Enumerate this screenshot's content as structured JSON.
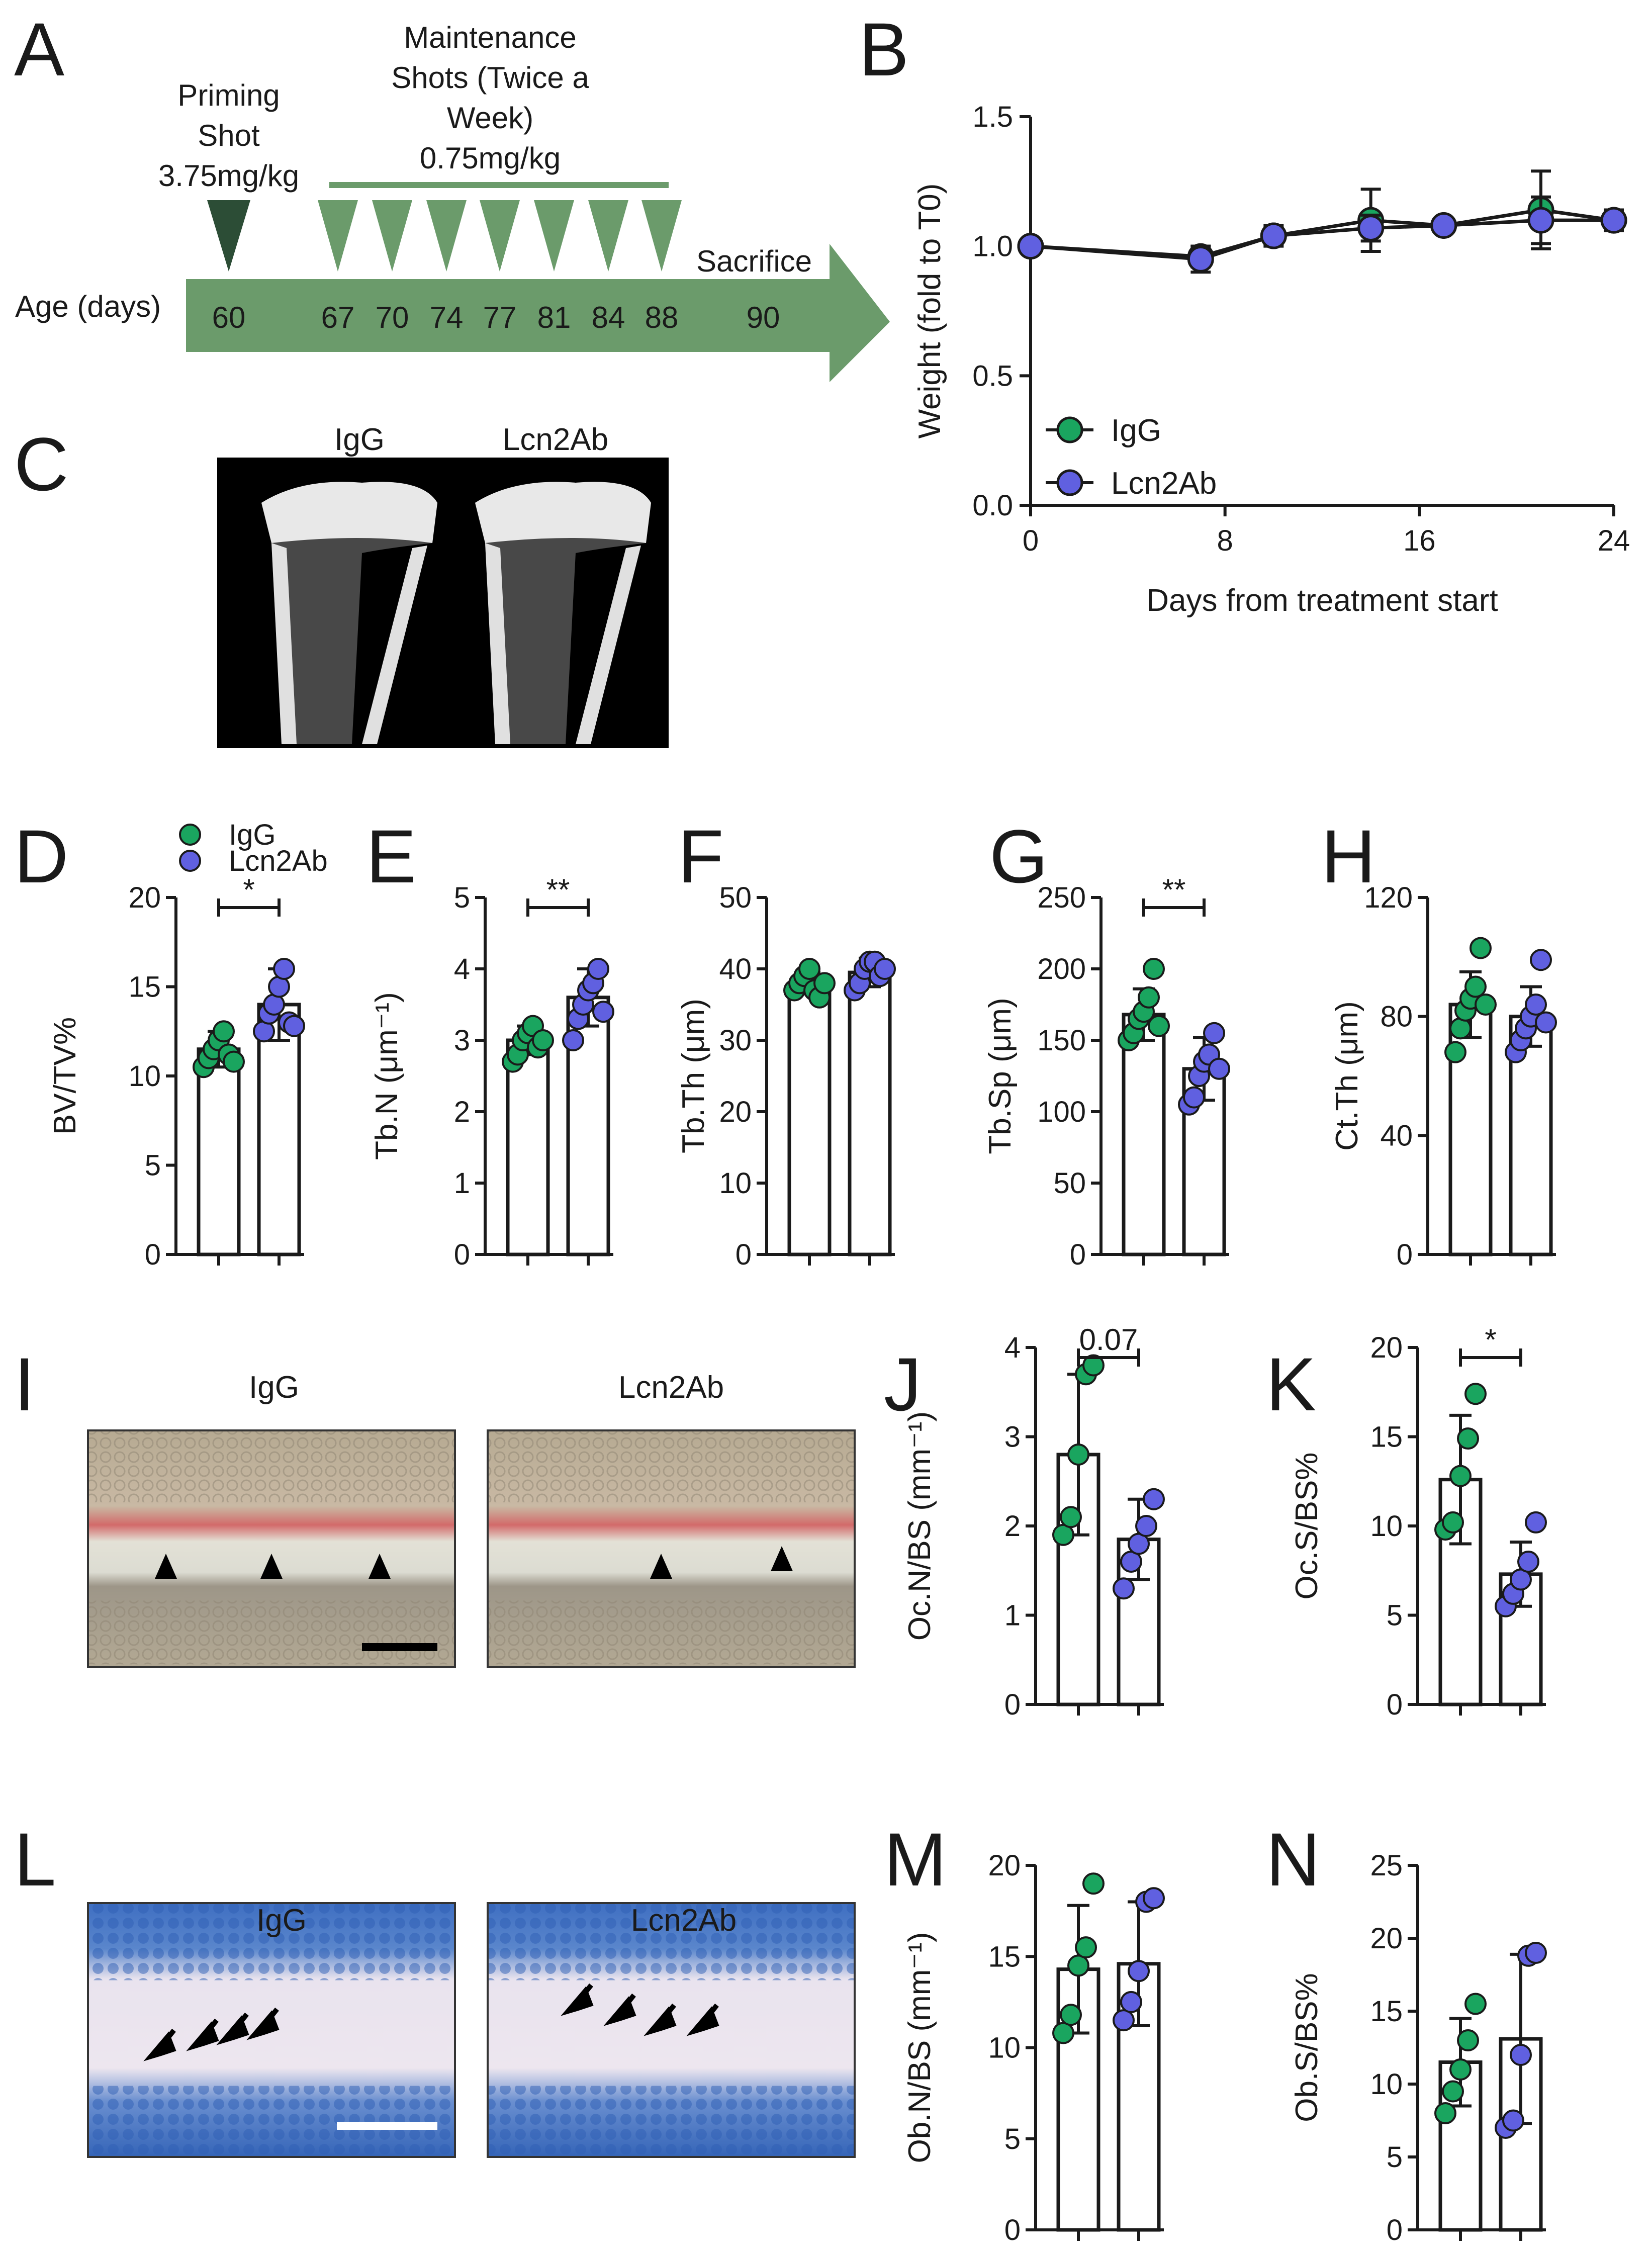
{
  "colors": {
    "igg": "#1aa55f",
    "lcn2ab": "#6060e0",
    "arrow": "#6b9b6b",
    "dark_tri": "#2c4d36",
    "tri": "#6b9b6b",
    "axis": "#1a1a1a"
  },
  "panel_labels": [
    "A",
    "B",
    "C",
    "D",
    "E",
    "F",
    "G",
    "H",
    "I",
    "J",
    "K",
    "L",
    "M",
    "N"
  ],
  "panel_a": {
    "priming_label": [
      "Priming",
      "Shot",
      "3.75mg/kg"
    ],
    "maintenance_label": [
      "Maintenance",
      "Shots (Twice a",
      "Week)",
      "0.75mg/kg"
    ],
    "sacrifice_label": "Sacrifice",
    "age_label": "Age (days)",
    "priming_day": "60",
    "maintenance_days": [
      "67",
      "70",
      "74",
      "77",
      "81",
      "84",
      "88"
    ],
    "sacrifice_day": "90"
  },
  "panel_c": {
    "labels": [
      "IgG",
      "Lcn2Ab"
    ]
  },
  "panel_i": {
    "labels": [
      "IgG",
      "Lcn2Ab"
    ]
  },
  "panel_l": {
    "labels": [
      "IgG",
      "Lcn2Ab"
    ]
  },
  "legend": {
    "igg": "IgG",
    "lcn2ab": "Lcn2Ab"
  },
  "chart_data": [
    {
      "id": "B",
      "type": "line",
      "xlabel": "Days from treatment start",
      "ylabel": "Weight (fold to T0)",
      "xlim": [
        0,
        24
      ],
      "ylim": [
        0,
        1.5
      ],
      "xticks": [
        "0",
        "8",
        "16",
        "24"
      ],
      "yticks": [
        "0.0",
        "0.5",
        "1.0",
        "1.5"
      ],
      "legend": "bottom-left",
      "series": [
        {
          "name": "IgG",
          "x": [
            0,
            7,
            10,
            14,
            17,
            21,
            24
          ],
          "y": [
            1.0,
            0.96,
            1.04,
            1.1,
            1.08,
            1.14,
            1.1
          ],
          "err": [
            0,
            0.04,
            0.04,
            0.12,
            0.02,
            0.15,
            0.03
          ]
        },
        {
          "name": "Lcn2Ab",
          "x": [
            0,
            7,
            10,
            14,
            17,
            21,
            24
          ],
          "y": [
            1.0,
            0.95,
            1.04,
            1.07,
            1.08,
            1.1,
            1.1
          ],
          "err": [
            0,
            0.05,
            0.03,
            0.05,
            0.02,
            0.09,
            0.04
          ]
        }
      ]
    },
    {
      "id": "D",
      "type": "bar",
      "ylabel": "BV/TV%",
      "ylim": [
        0,
        20
      ],
      "yticks": [
        "0",
        "5",
        "10",
        "15",
        "20"
      ],
      "significance": "*",
      "groups": [
        {
          "name": "IgG",
          "mean": 11.5,
          "sd": 1.0,
          "points": [
            10.5,
            11.0,
            11.5,
            12.0,
            12.5,
            11.2,
            10.8
          ]
        },
        {
          "name": "Lcn2Ab",
          "mean": 14.0,
          "sd": 2.0,
          "points": [
            12.5,
            13.5,
            14.0,
            15.0,
            16.0,
            13.0,
            12.8
          ]
        }
      ]
    },
    {
      "id": "E",
      "type": "bar",
      "ylabel": "Tb.N (μm⁻¹)",
      "ylim": [
        0,
        5
      ],
      "yticks": [
        "0",
        "1",
        "2",
        "3",
        "4",
        "5"
      ],
      "significance": "**",
      "groups": [
        {
          "name": "IgG",
          "mean": 3.0,
          "sd": 0.2,
          "points": [
            2.7,
            2.8,
            3.0,
            3.1,
            3.2,
            2.9,
            3.0
          ]
        },
        {
          "name": "Lcn2Ab",
          "mean": 3.6,
          "sd": 0.4,
          "points": [
            3.0,
            3.3,
            3.5,
            3.7,
            3.8,
            4.0,
            3.4
          ]
        }
      ]
    },
    {
      "id": "F",
      "type": "bar",
      "ylabel": "Tb.Th (μm)",
      "ylim": [
        0,
        50
      ],
      "yticks": [
        "0",
        "10",
        "20",
        "30",
        "40",
        "50"
      ],
      "groups": [
        {
          "name": "IgG",
          "mean": 38,
          "sd": 1.5,
          "points": [
            37,
            38,
            39,
            40,
            37,
            36,
            38
          ]
        },
        {
          "name": "Lcn2Ab",
          "mean": 39.5,
          "sd": 2.0,
          "points": [
            37,
            38,
            40,
            41,
            41,
            39,
            40
          ]
        }
      ]
    },
    {
      "id": "G",
      "type": "bar",
      "ylabel": "Tb.Sp (μm)",
      "ylim": [
        0,
        250
      ],
      "yticks": [
        "0",
        "50",
        "100",
        "150",
        "200",
        "250"
      ],
      "significance": "**",
      "groups": [
        {
          "name": "IgG",
          "mean": 168,
          "sd": 18,
          "points": [
            150,
            155,
            165,
            170,
            180,
            200,
            160
          ]
        },
        {
          "name": "Lcn2Ab",
          "mean": 130,
          "sd": 22,
          "points": [
            105,
            110,
            125,
            135,
            140,
            155,
            130
          ]
        }
      ]
    },
    {
      "id": "H",
      "type": "bar",
      "ylabel": "Ct.Th (μm)",
      "ylim": [
        0,
        120
      ],
      "yticks": [
        "0",
        "40",
        "80",
        "120"
      ],
      "groups": [
        {
          "name": "IgG",
          "mean": 84,
          "sd": 11,
          "points": [
            68,
            76,
            82,
            86,
            90,
            103,
            84
          ]
        },
        {
          "name": "Lcn2Ab",
          "mean": 80,
          "sd": 10,
          "points": [
            68,
            72,
            76,
            80,
            84,
            99,
            78
          ]
        }
      ]
    },
    {
      "id": "J",
      "type": "bar",
      "ylabel": "Oc.N/BS (mm⁻¹)",
      "ylim": [
        0,
        4
      ],
      "yticks": [
        "0",
        "1",
        "2",
        "3",
        "4"
      ],
      "significance": "0.07",
      "groups": [
        {
          "name": "IgG",
          "mean": 2.8,
          "sd": 0.9,
          "points": [
            1.9,
            2.1,
            2.8,
            3.7,
            3.8
          ]
        },
        {
          "name": "Lcn2Ab",
          "mean": 1.85,
          "sd": 0.45,
          "points": [
            1.3,
            1.6,
            1.8,
            2.0,
            2.3
          ]
        }
      ]
    },
    {
      "id": "K",
      "type": "bar",
      "ylabel": "Oc.S/BS%",
      "ylim": [
        0,
        20
      ],
      "yticks": [
        "0",
        "5",
        "10",
        "15",
        "20"
      ],
      "significance": "*",
      "groups": [
        {
          "name": "IgG",
          "mean": 12.6,
          "sd": 3.6,
          "points": [
            9.8,
            10.2,
            12.8,
            14.9,
            17.4
          ]
        },
        {
          "name": "Lcn2Ab",
          "mean": 7.3,
          "sd": 1.8,
          "points": [
            5.5,
            6.2,
            7.0,
            8.0,
            10.2
          ]
        }
      ]
    },
    {
      "id": "M",
      "type": "bar",
      "ylabel": "Ob.N/BS (mm⁻¹)",
      "ylim": [
        0,
        20
      ],
      "yticks": [
        "0",
        "5",
        "10",
        "15",
        "20"
      ],
      "groups": [
        {
          "name": "IgG",
          "mean": 14.3,
          "sd": 3.5,
          "points": [
            10.8,
            11.8,
            14.5,
            15.5,
            19.0
          ]
        },
        {
          "name": "Lcn2Ab",
          "mean": 14.6,
          "sd": 3.4,
          "points": [
            11.5,
            12.5,
            14.2,
            18.0,
            18.2
          ]
        }
      ]
    },
    {
      "id": "N",
      "type": "bar",
      "ylabel": "Ob.S/BS%",
      "ylim": [
        0,
        25
      ],
      "yticks": [
        "0",
        "5",
        "10",
        "15",
        "20",
        "25"
      ],
      "groups": [
        {
          "name": "IgG",
          "mean": 11.5,
          "sd": 3.0,
          "points": [
            8.0,
            9.5,
            11.0,
            13.0,
            15.5
          ]
        },
        {
          "name": "Lcn2Ab",
          "mean": 13.1,
          "sd": 5.8,
          "points": [
            7.0,
            7.5,
            12.0,
            18.8,
            19.0
          ]
        }
      ]
    }
  ]
}
